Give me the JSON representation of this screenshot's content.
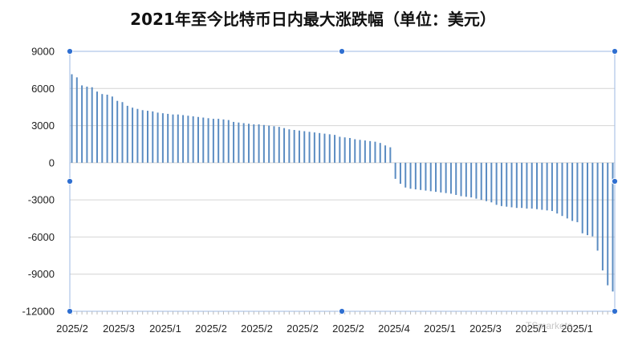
{
  "title": "2021年至今比特币日内最大涨跌幅（单位：美元）",
  "watermark": "TSmarkets",
  "colors": {
    "bar": "#5b8cc2",
    "grid": "#d4d4d4",
    "axis": "#9db8e3",
    "handle": "#2f6fd1"
  },
  "chart_data": {
    "type": "bar",
    "title": "2021年至今比特币日内最大涨跌幅（单位：美元）",
    "xlabel": "",
    "ylabel": "",
    "ylim": [
      -12000,
      9000
    ],
    "yticks": [
      9000,
      6000,
      3000,
      0,
      -3000,
      -6000,
      -9000,
      -12000
    ],
    "ytick_labels": [
      "9000",
      "6000",
      "3000",
      "0",
      "-3000",
      "-6000",
      "-9000",
      "-12000"
    ],
    "xtick_labels": [
      "2025/2",
      "2025/3",
      "2025/1",
      "2025/2",
      "2025/2",
      "2025/2",
      "2025/2",
      "2025/4",
      "2025/1",
      "2025/3",
      "2025/1",
      "2025/1"
    ],
    "grid": true,
    "values": [
      7150,
      6900,
      6250,
      6150,
      6100,
      5750,
      5550,
      5500,
      5350,
      5000,
      4900,
      4600,
      4450,
      4350,
      4250,
      4200,
      4150,
      4050,
      4000,
      3950,
      3900,
      3900,
      3850,
      3800,
      3750,
      3700,
      3650,
      3600,
      3550,
      3550,
      3500,
      3450,
      3300,
      3250,
      3200,
      3150,
      3100,
      3100,
      3050,
      3000,
      2950,
      2900,
      2800,
      2700,
      2650,
      2600,
      2550,
      2500,
      2450,
      2400,
      2350,
      2300,
      2250,
      2100,
      2050,
      2000,
      1900,
      1850,
      1800,
      1750,
      1700,
      1600,
      1400,
      1250,
      -1300,
      -1700,
      -2000,
      -2100,
      -2150,
      -2200,
      -2250,
      -2300,
      -2350,
      -2400,
      -2450,
      -2500,
      -2600,
      -2700,
      -2750,
      -2800,
      -2900,
      -3000,
      -3100,
      -3200,
      -3400,
      -3500,
      -3550,
      -3600,
      -3650,
      -3650,
      -3700,
      -3700,
      -3750,
      -3800,
      -3850,
      -3900,
      -4100,
      -4300,
      -4500,
      -4700,
      -4800,
      -5700,
      -5850,
      -5950,
      -7100,
      -8700,
      -9900,
      -10400
    ]
  }
}
